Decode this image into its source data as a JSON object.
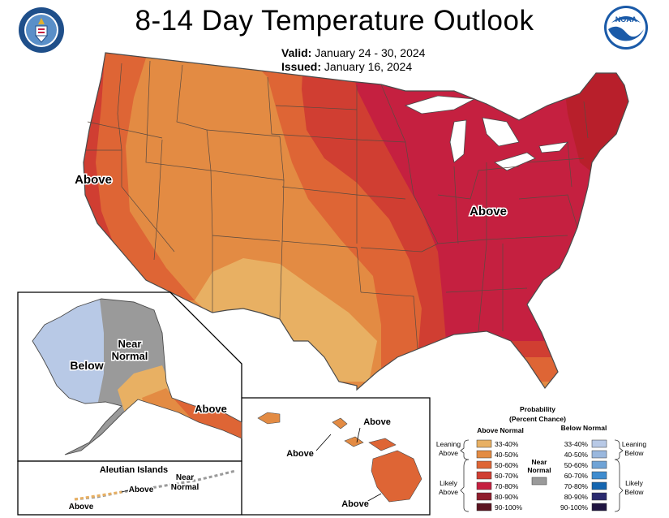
{
  "header": {
    "title": "8-14 Day Temperature Outlook",
    "valid_label": "Valid:",
    "valid_value": "January 24 - 30, 2024",
    "issued_label": "Issued:",
    "issued_value": "January 16, 2024"
  },
  "logos": {
    "left": "doc-seal",
    "right": "noaa-logo",
    "noaa_text": "NOAA"
  },
  "map_labels": {
    "west_coast": "Above",
    "east": "Above",
    "alaska_below": "Below",
    "alaska_near_1": "Near",
    "alaska_near_2": "Normal",
    "alaska_above": "Above",
    "aleutian_title": "Aleutian Islands",
    "aleutian_above_1": "Above",
    "aleutian_above_2": "Above",
    "aleutian_near_1": "Near",
    "aleutian_near_2": "Normal",
    "hawaii_above_1": "Above",
    "hawaii_above_2": "Above",
    "hawaii_above_3": "Above"
  },
  "legend": {
    "title_1": "Probability",
    "title_2": "(Percent Chance)",
    "above_header": "Above Normal",
    "below_header": "Below Normal",
    "near_1": "Near",
    "near_2": "Normal",
    "leaning_above_1": "Leaning",
    "leaning_above_2": "Above",
    "likely_above_1": "Likely",
    "likely_above_2": "Above",
    "leaning_below_1": "Leaning",
    "leaning_below_2": "Below",
    "likely_below_1": "Likely",
    "likely_below_2": "Below",
    "above_rows": [
      {
        "range": "33-40%",
        "color": "#e8b063"
      },
      {
        "range": "40-50%",
        "color": "#e38b43"
      },
      {
        "range": "50-60%",
        "color": "#de6535"
      },
      {
        "range": "60-70%",
        "color": "#d03e32"
      },
      {
        "range": "70-80%",
        "color": "#c52040"
      },
      {
        "range": "80-90%",
        "color": "#8f1d2c"
      },
      {
        "range": "90-100%",
        "color": "#5a1320"
      }
    ],
    "below_rows": [
      {
        "range": "33-40%",
        "color": "#b8c9e6"
      },
      {
        "range": "40-50%",
        "color": "#9ab8de"
      },
      {
        "range": "50-60%",
        "color": "#6fa3d6"
      },
      {
        "range": "60-70%",
        "color": "#3f8ccf"
      },
      {
        "range": "70-80%",
        "color": "#1566b0"
      },
      {
        "range": "80-90%",
        "color": "#2a2a6e"
      },
      {
        "range": "90-100%",
        "color": "#1f1440"
      }
    ],
    "near_color": "#9a9a9a"
  }
}
